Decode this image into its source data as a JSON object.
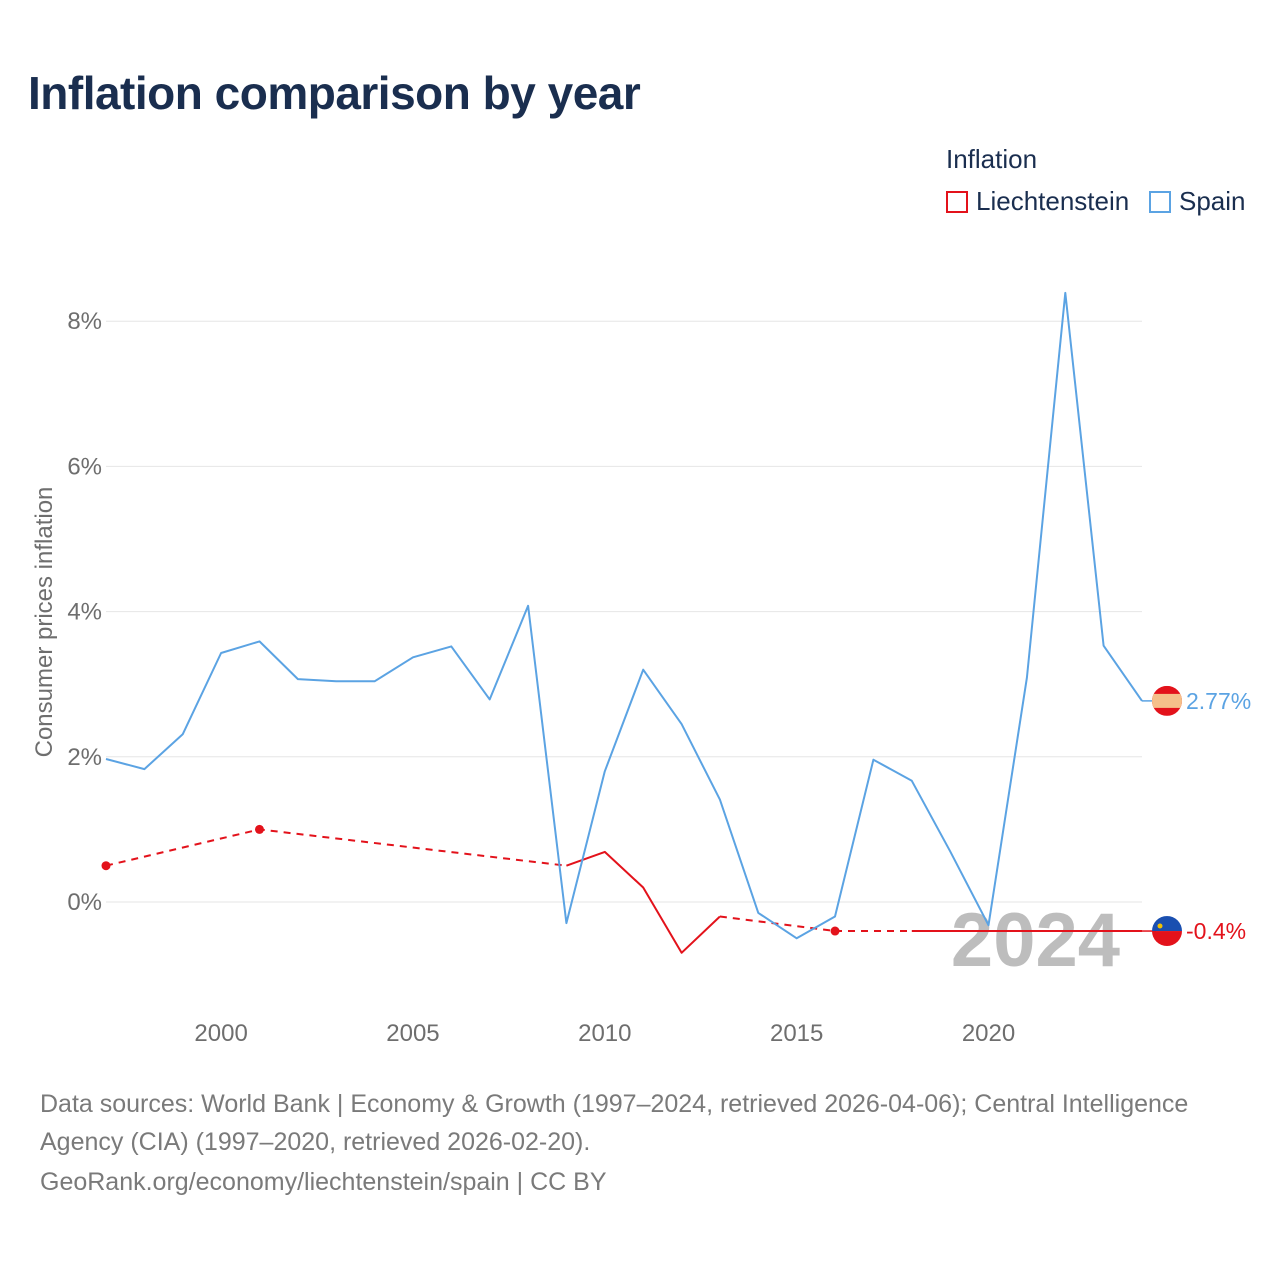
{
  "title": "Inflation comparison by year",
  "legend": {
    "title": "Inflation",
    "items": [
      {
        "label": "Liechtenstein",
        "color": "#e3121b"
      },
      {
        "label": "Spain",
        "color": "#5ba3e3"
      }
    ]
  },
  "chart_data": {
    "type": "line",
    "title": "Inflation comparison by year",
    "xlabel": "",
    "ylabel": "Consumer prices inflation",
    "xlim": [
      1997,
      2024
    ],
    "ylim": [
      -1.5,
      8.8
    ],
    "y_ticks": [
      {
        "value": 0,
        "label": "0%"
      },
      {
        "value": 2,
        "label": "2%"
      },
      {
        "value": 4,
        "label": "4%"
      },
      {
        "value": 6,
        "label": "6%"
      },
      {
        "value": 8,
        "label": "8%"
      }
    ],
    "x_ticks": [
      {
        "value": 2000,
        "label": "2000"
      },
      {
        "value": 2005,
        "label": "2005"
      },
      {
        "value": 2010,
        "label": "2010"
      },
      {
        "value": 2015,
        "label": "2015"
      },
      {
        "value": 2020,
        "label": "2020"
      }
    ],
    "watermark_year": "2024",
    "series": [
      {
        "name": "Spain",
        "color": "#5ba3e3",
        "end_label": "2.77%",
        "points": [
          [
            1997,
            1.97
          ],
          [
            1998,
            1.83
          ],
          [
            1999,
            2.31
          ],
          [
            2000,
            3.43
          ],
          [
            2001,
            3.59
          ],
          [
            2002,
            3.07
          ],
          [
            2003,
            3.04
          ],
          [
            2004,
            3.04
          ],
          [
            2005,
            3.37
          ],
          [
            2006,
            3.52
          ],
          [
            2007,
            2.79
          ],
          [
            2008,
            4.08
          ],
          [
            2009,
            -0.29
          ],
          [
            2010,
            1.8
          ],
          [
            2011,
            3.2
          ],
          [
            2012,
            2.45
          ],
          [
            2013,
            1.41
          ],
          [
            2014,
            -0.15
          ],
          [
            2015,
            -0.5
          ],
          [
            2016,
            -0.2
          ],
          [
            2017,
            1.96
          ],
          [
            2018,
            1.67
          ],
          [
            2019,
            0.7
          ],
          [
            2020,
            -0.32
          ],
          [
            2021,
            3.09
          ],
          [
            2022,
            8.39
          ],
          [
            2023,
            3.53
          ],
          [
            2024,
            2.77
          ]
        ]
      },
      {
        "name": "Liechtenstein",
        "color": "#e3121b",
        "end_label": "-0.4%",
        "observed": [
          [
            1997,
            0.5
          ],
          [
            2001,
            1.0
          ],
          [
            2009,
            0.5
          ],
          [
            2010,
            0.69
          ],
          [
            2011,
            0.2
          ],
          [
            2012,
            -0.7
          ],
          [
            2013,
            -0.2
          ],
          [
            2016,
            -0.4
          ],
          [
            2020,
            -0.4
          ]
        ],
        "segments": [
          {
            "style": "dashed",
            "points": [
              [
                1997,
                0.5
              ],
              [
                2001,
                1.0
              ],
              [
                2009,
                0.5
              ]
            ]
          },
          {
            "style": "solid",
            "points": [
              [
                2009,
                0.5
              ],
              [
                2010,
                0.69
              ],
              [
                2011,
                0.2
              ],
              [
                2012,
                -0.7
              ],
              [
                2013,
                -0.2
              ]
            ]
          },
          {
            "style": "dashed",
            "points": [
              [
                2013,
                -0.2
              ],
              [
                2016,
                -0.4
              ]
            ]
          },
          {
            "style": "dashed",
            "points": [
              [
                2016,
                -0.4
              ],
              [
                2018,
                -0.4
              ]
            ]
          },
          {
            "style": "solid",
            "points": [
              [
                2018,
                -0.4
              ],
              [
                2024,
                -0.4
              ]
            ]
          }
        ],
        "markers": [
          [
            1997,
            0.5
          ],
          [
            2001,
            1.0
          ],
          [
            2016,
            -0.4
          ]
        ]
      }
    ]
  },
  "footer": {
    "line1": "Data sources: World Bank | Economy & Growth (1997–2024, retrieved 2026-04-06); Central Intelligence",
    "line2": "Agency (CIA) (1997–2020, retrieved 2026-02-20).",
    "line3": "GeoRank.org/economy/liechtenstein/spain | CC BY"
  }
}
